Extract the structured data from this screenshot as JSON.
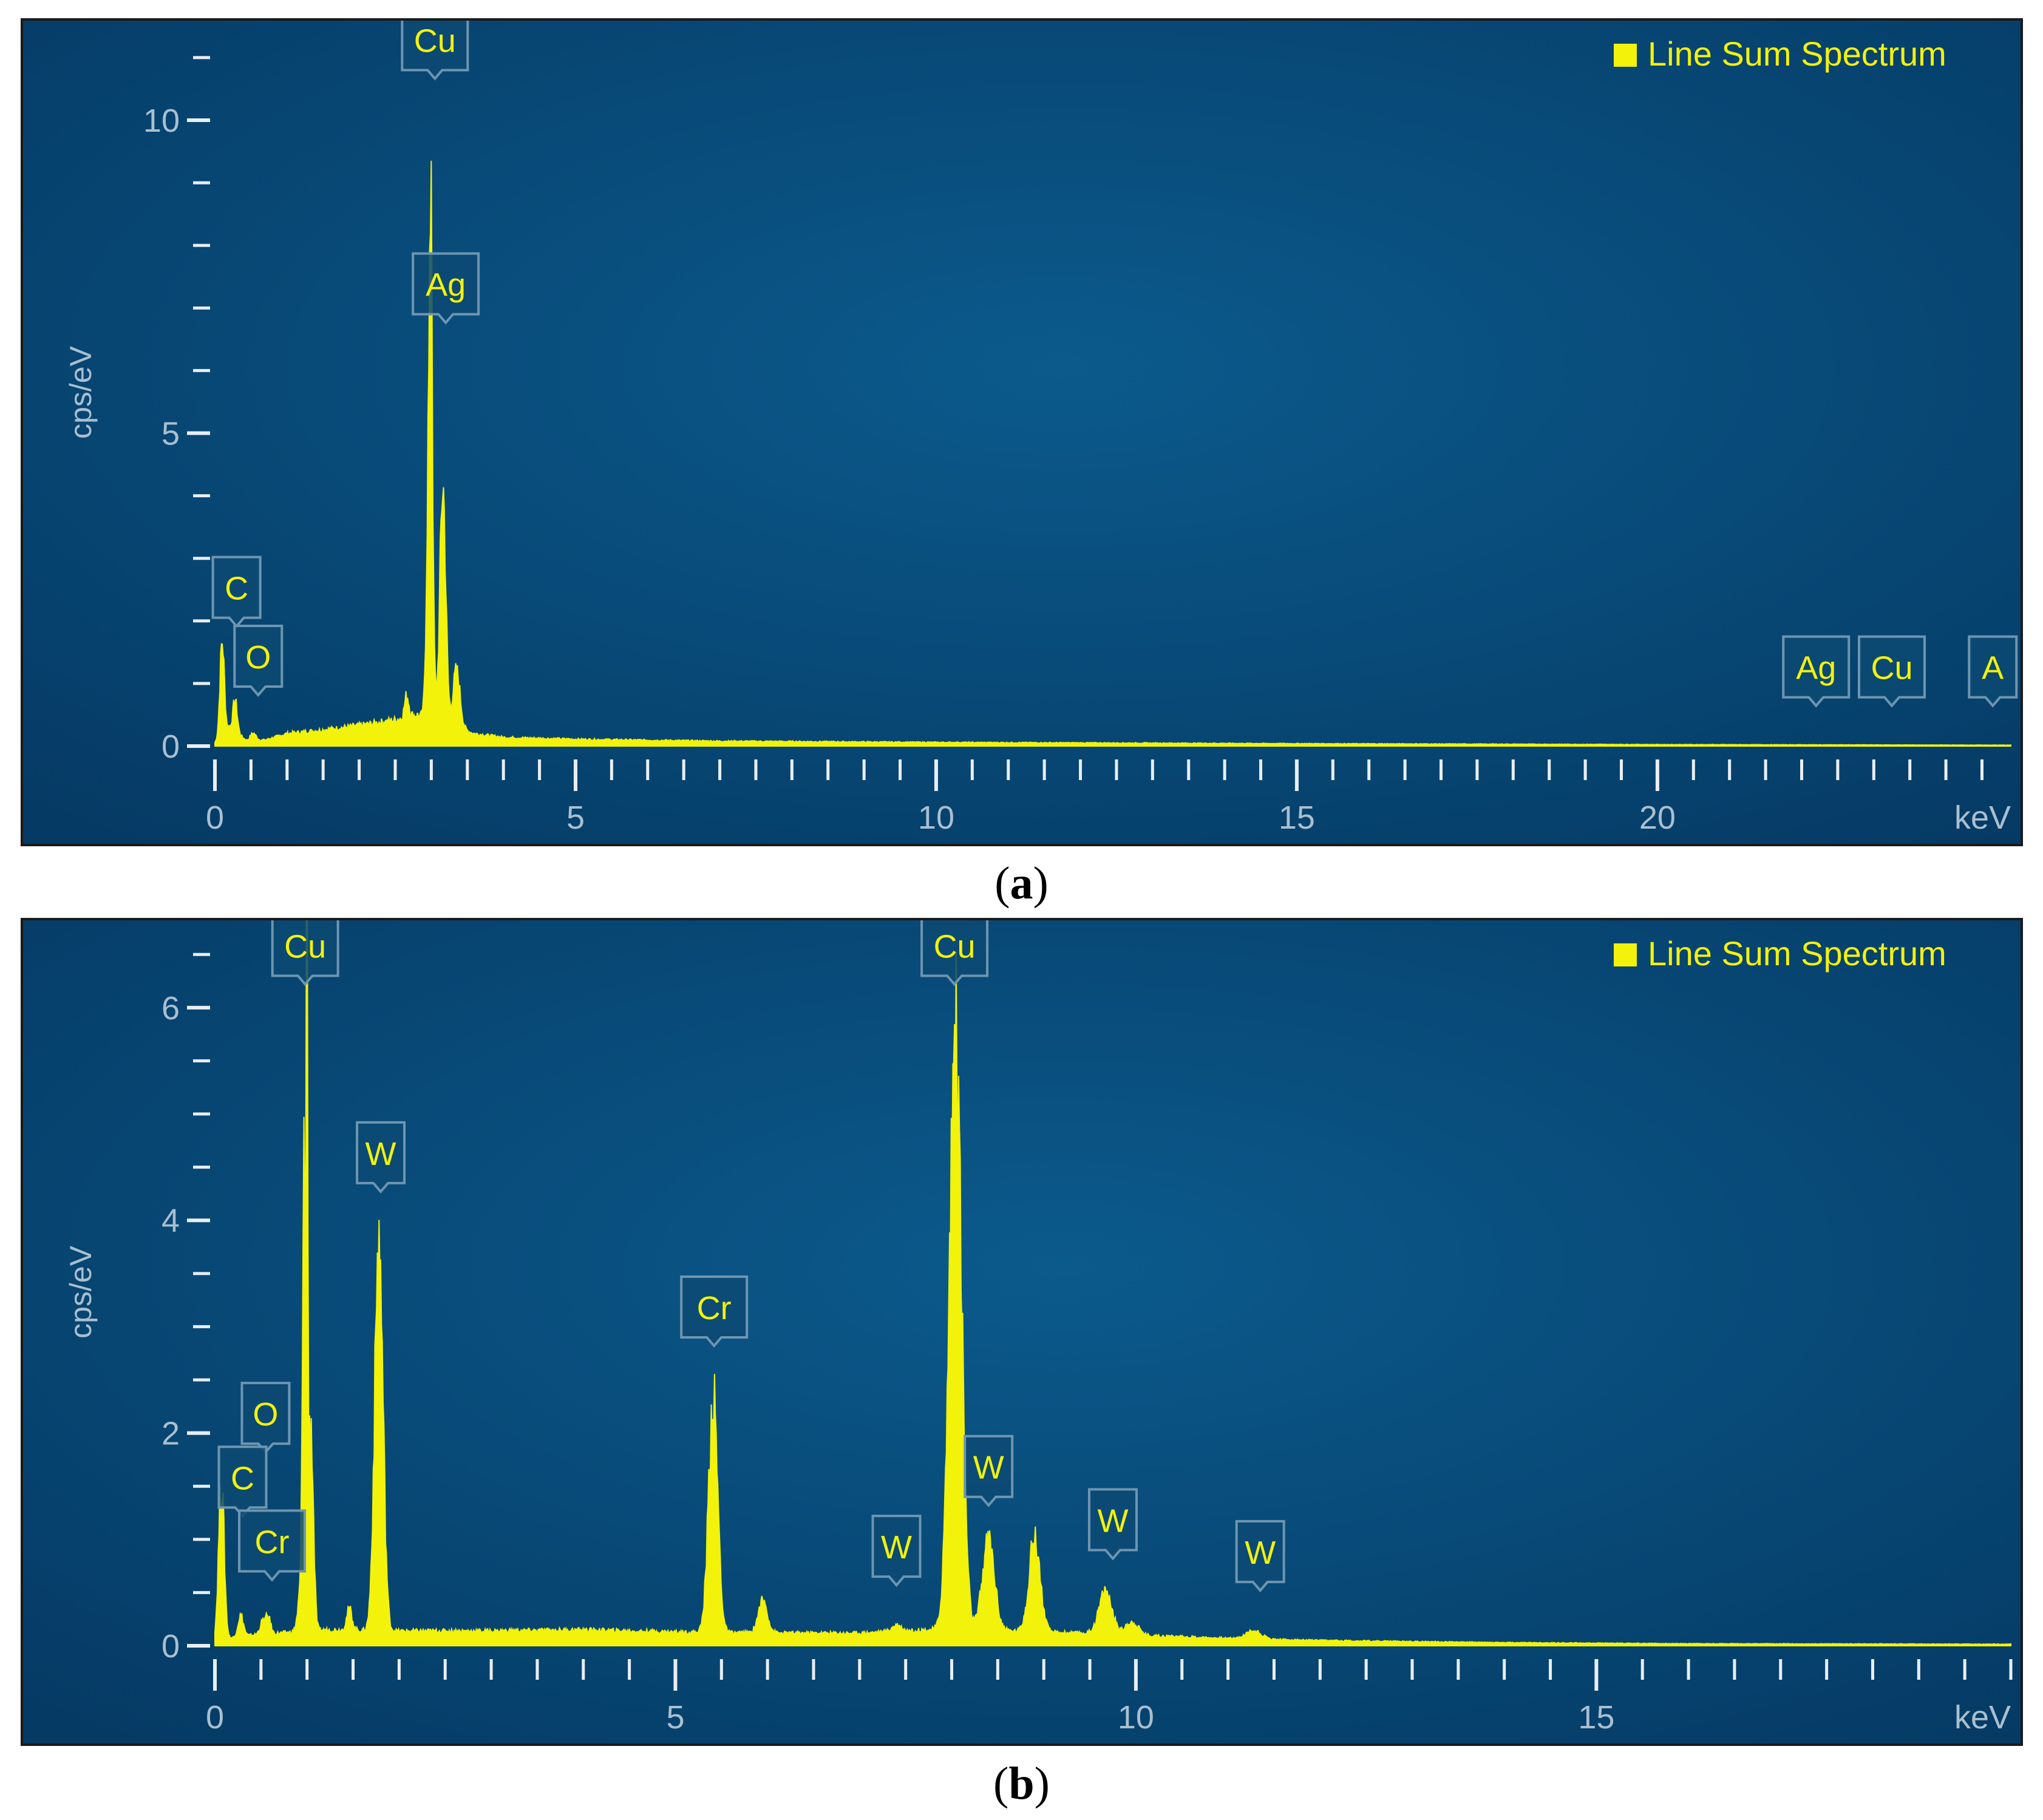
{
  "colors": {
    "bg_center": "#0b5a8c",
    "bg_edge": "#053a64",
    "spectrum": "#f2f20a",
    "axis_text": "#a9bfd0",
    "tick": "#e8eef3",
    "label_text": "#f2f20a",
    "label_box": "#0c4a73",
    "label_border": "#6e95b0"
  },
  "captions": [
    {
      "open": "(",
      "letter": "a",
      "close": ")"
    },
    {
      "open": "(",
      "letter": "b",
      "close": ")"
    }
  ],
  "chart_data": [
    {
      "type": "line",
      "ylabel": "cps/eV",
      "xunit": "keV",
      "legend": {
        "label": "Line Sum Spectrum",
        "position": "top-right"
      },
      "xlim": [
        0,
        24.9
      ],
      "ylim": [
        0,
        11.3
      ],
      "xticks": [
        0,
        5,
        10,
        15,
        20
      ],
      "yticks": [
        0,
        5,
        10
      ],
      "x_minor_step": 0.5,
      "y_minor_step": 1,
      "series": [
        {
          "background": [
            [
              0,
              0.05
            ],
            [
              0.2,
              0.3
            ],
            [
              0.45,
              0.08
            ],
            [
              0.7,
              0.1
            ],
            [
              1.0,
              0.2
            ],
            [
              1.5,
              0.26
            ],
            [
              2.0,
              0.33
            ],
            [
              2.5,
              0.42
            ],
            [
              2.8,
              0.5
            ],
            [
              3.6,
              0.2
            ],
            [
              4.0,
              0.14
            ],
            [
              5.0,
              0.11
            ],
            [
              7.0,
              0.08
            ],
            [
              10.0,
              0.06
            ],
            [
              15.0,
              0.04
            ],
            [
              20.0,
              0.025
            ],
            [
              24.9,
              0.015
            ]
          ],
          "peaks": [
            {
              "x": 0.1,
              "height": 1.5,
              "width": 0.03
            },
            {
              "x": 0.28,
              "height": 0.5,
              "width": 0.03
            },
            {
              "x": 0.53,
              "height": 0.12,
              "width": 0.04
            },
            {
              "x": 2.66,
              "height": 0.35,
              "width": 0.03
            },
            {
              "x": 2.98,
              "height": 5.9,
              "width": 0.035
            },
            {
              "x": 3.0,
              "height": 4.3,
              "width": 0.012
            },
            {
              "x": 3.16,
              "height": 3.8,
              "width": 0.04
            },
            {
              "x": 3.35,
              "height": 0.9,
              "width": 0.05
            }
          ]
        }
      ],
      "peak_labels": [
        {
          "text": "Cu",
          "x": 3.05,
          "y": 10.8
        },
        {
          "text": "Ag",
          "x": 3.2,
          "y": 6.9
        },
        {
          "text": "C",
          "x": 0.3,
          "y": 2.05
        },
        {
          "text": "O",
          "x": 0.6,
          "y": 0.95
        },
        {
          "text": "Ag",
          "x": 22.2,
          "y": 0.78
        },
        {
          "text": "Cu",
          "x": 23.25,
          "y": 0.78
        },
        {
          "text": "A",
          "x": 24.65,
          "y": 0.78
        }
      ]
    },
    {
      "type": "line",
      "ylabel": "cps/eV",
      "xunit": "keV",
      "legend": {
        "label": "Line Sum Spectrum",
        "position": "top-right"
      },
      "xlim": [
        0,
        19.5
      ],
      "ylim": [
        0,
        6.65
      ],
      "xticks": [
        0,
        5,
        10,
        15
      ],
      "yticks": [
        0,
        2,
        4,
        6
      ],
      "x_minor_step": 0.5,
      "y_minor_step": 0.5,
      "series": [
        {
          "background": [
            [
              0,
              0.05
            ],
            [
              0.4,
              0.1
            ],
            [
              0.7,
              0.12
            ],
            [
              1.2,
              0.15
            ],
            [
              2.0,
              0.14
            ],
            [
              3.0,
              0.14
            ],
            [
              4.0,
              0.15
            ],
            [
              5.0,
              0.13
            ],
            [
              6.0,
              0.12
            ],
            [
              7.0,
              0.12
            ],
            [
              8.0,
              0.16
            ],
            [
              9.0,
              0.13
            ],
            [
              10.0,
              0.1
            ],
            [
              11.0,
              0.07
            ],
            [
              12.0,
              0.05
            ],
            [
              14.0,
              0.03
            ],
            [
              16.0,
              0.02
            ],
            [
              19.5,
              0.015
            ]
          ],
          "peaks": [
            {
              "x": 0.07,
              "height": 1.5,
              "width": 0.03
            },
            {
              "x": 0.28,
              "height": 0.2,
              "width": 0.03
            },
            {
              "x": 0.52,
              "height": 0.12,
              "width": 0.03
            },
            {
              "x": 0.58,
              "height": 0.15,
              "width": 0.025
            },
            {
              "x": 0.93,
              "height": 0.35,
              "width": 0.03
            },
            {
              "x": 1.04,
              "height": 2.0,
              "width": 0.028
            },
            {
              "x": 0.97,
              "height": 4.2,
              "width": 0.018
            },
            {
              "x": 1.0,
              "height": 6.8,
              "width": 0.007
            },
            {
              "x": 1.46,
              "height": 0.2,
              "width": 0.03
            },
            {
              "x": 1.78,
              "height": 3.65,
              "width": 0.045
            },
            {
              "x": 5.41,
              "height": 2.2,
              "width": 0.05
            },
            {
              "x": 5.95,
              "height": 0.3,
              "width": 0.05
            },
            {
              "x": 7.4,
              "height": 0.06,
              "width": 0.05
            },
            {
              "x": 8.04,
              "height": 5.6,
              "width": 0.065
            },
            {
              "x": 8.4,
              "height": 0.85,
              "width": 0.065
            },
            {
              "x": 8.9,
              "height": 0.88,
              "width": 0.06
            },
            {
              "x": 9.67,
              "height": 0.4,
              "width": 0.07
            },
            {
              "x": 9.96,
              "height": 0.12,
              "width": 0.07
            },
            {
              "x": 11.28,
              "height": 0.08,
              "width": 0.08
            }
          ]
        }
      ],
      "peak_labels": [
        {
          "text": "Cu",
          "x": 0.98,
          "y": 6.3
        },
        {
          "text": "W",
          "x": 1.8,
          "y": 4.35
        },
        {
          "text": "O",
          "x": 0.55,
          "y": 1.9
        },
        {
          "text": "C",
          "x": 0.3,
          "y": 1.3
        },
        {
          "text": "Cr",
          "x": 0.62,
          "y": 0.7
        },
        {
          "text": "Cr",
          "x": 5.42,
          "y": 2.9
        },
        {
          "text": "Cu",
          "x": 8.03,
          "y": 6.3
        },
        {
          "text": "W",
          "x": 8.4,
          "y": 1.4
        },
        {
          "text": "W",
          "x": 7.4,
          "y": 0.65
        },
        {
          "text": "W",
          "x": 9.75,
          "y": 0.9
        },
        {
          "text": "W",
          "x": 11.35,
          "y": 0.6
        }
      ]
    }
  ]
}
